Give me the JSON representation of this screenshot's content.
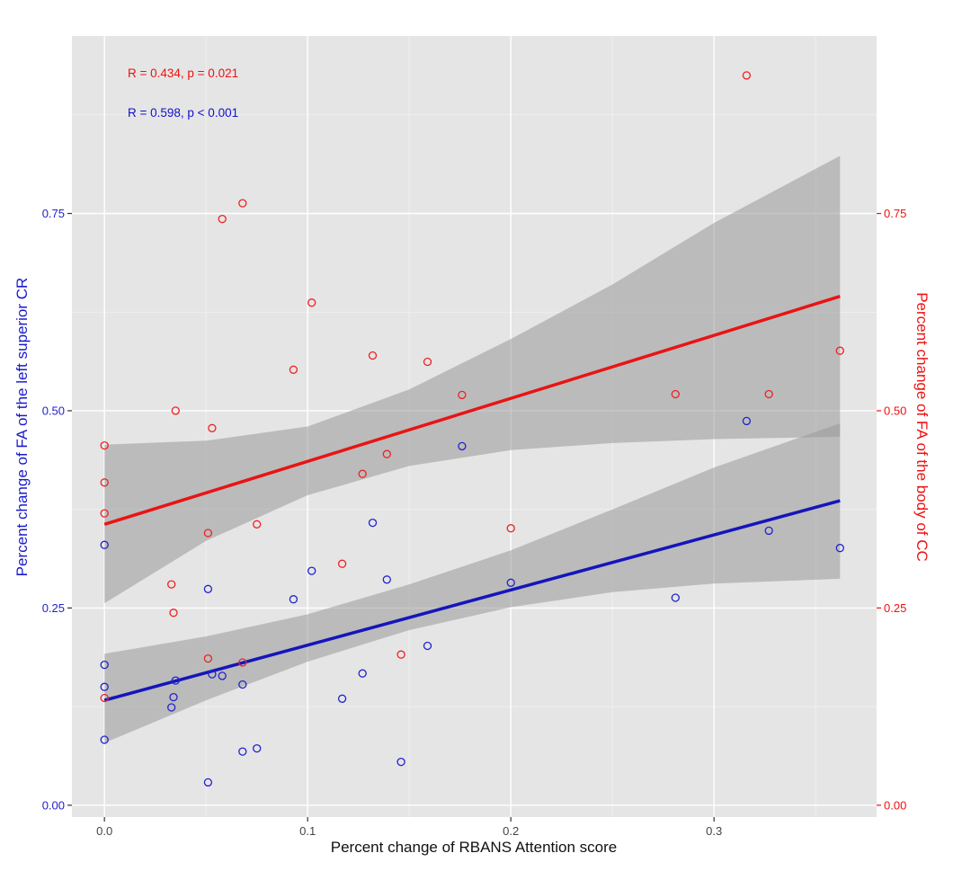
{
  "chart_data": {
    "type": "scatter",
    "xlabel": "Percent change of RBANS Attention score",
    "ylabel_left": "Percent change of FA of the left superior CR",
    "ylabel_right": "Percent change of FA of the body of CC",
    "xlim": [
      -0.016,
      0.38
    ],
    "ylim": [
      -0.015,
      0.975
    ],
    "x_ticks": [
      0.0,
      0.1,
      0.2,
      0.3
    ],
    "x_tick_labels": [
      "0.0",
      "0.1",
      "0.2",
      "0.3"
    ],
    "y_ticks": [
      0.0,
      0.25,
      0.5,
      0.75
    ],
    "y_tick_labels_left": [
      "0.00",
      "0.25",
      "0.50",
      "0.75"
    ],
    "y_tick_labels_right": [
      "0.00",
      "0.25",
      "0.50",
      "0.75"
    ],
    "grid": true,
    "annotations": [
      {
        "text": "R = 0.434, p = 0.021",
        "color": "#ee1111"
      },
      {
        "text": "R = 0.598, p < 0.001",
        "color": "#1111cc"
      }
    ],
    "series": [
      {
        "color": "#2222cc",
        "axis": "left",
        "points": [
          [
            0.0,
            0.33
          ],
          [
            0.0,
            0.178
          ],
          [
            0.0,
            0.15
          ],
          [
            0.0,
            0.083
          ],
          [
            0.033,
            0.124
          ],
          [
            0.034,
            0.137
          ],
          [
            0.035,
            0.158
          ],
          [
            0.051,
            0.274
          ],
          [
            0.051,
            0.029
          ],
          [
            0.053,
            0.166
          ],
          [
            0.058,
            0.164
          ],
          [
            0.068,
            0.153
          ],
          [
            0.068,
            0.068
          ],
          [
            0.075,
            0.072
          ],
          [
            0.093,
            0.261
          ],
          [
            0.102,
            0.297
          ],
          [
            0.117,
            0.135
          ],
          [
            0.127,
            0.167
          ],
          [
            0.132,
            0.358
          ],
          [
            0.139,
            0.286
          ],
          [
            0.146,
            0.055
          ],
          [
            0.159,
            0.202
          ],
          [
            0.176,
            0.455
          ],
          [
            0.2,
            0.282
          ],
          [
            0.281,
            0.263
          ],
          [
            0.316,
            0.487
          ],
          [
            0.327,
            0.348
          ],
          [
            0.362,
            0.326
          ]
        ],
        "fit": {
          "x": [
            0.0,
            0.362
          ],
          "y": [
            0.133,
            0.386
          ]
        },
        "ci": {
          "x": [
            0.0,
            0.05,
            0.1,
            0.15,
            0.2,
            0.25,
            0.3,
            0.362
          ],
          "lower": [
            0.079,
            0.133,
            0.182,
            0.222,
            0.251,
            0.27,
            0.281,
            0.287
          ],
          "upper": [
            0.192,
            0.214,
            0.242,
            0.28,
            0.323,
            0.375,
            0.428,
            0.484
          ]
        }
      },
      {
        "color": "#ee2222",
        "axis": "right",
        "points": [
          [
            0.0,
            0.456
          ],
          [
            0.0,
            0.409
          ],
          [
            0.0,
            0.37
          ],
          [
            0.0,
            0.136
          ],
          [
            0.033,
            0.28
          ],
          [
            0.034,
            0.244
          ],
          [
            0.035,
            0.5
          ],
          [
            0.051,
            0.345
          ],
          [
            0.051,
            0.186
          ],
          [
            0.053,
            0.478
          ],
          [
            0.058,
            0.743
          ],
          [
            0.068,
            0.763
          ],
          [
            0.068,
            0.181
          ],
          [
            0.075,
            0.356
          ],
          [
            0.093,
            0.552
          ],
          [
            0.102,
            0.637
          ],
          [
            0.117,
            0.306
          ],
          [
            0.127,
            0.42
          ],
          [
            0.132,
            0.57
          ],
          [
            0.139,
            0.445
          ],
          [
            0.146,
            0.191
          ],
          [
            0.159,
            0.562
          ],
          [
            0.176,
            0.52
          ],
          [
            0.2,
            0.351
          ],
          [
            0.281,
            0.521
          ],
          [
            0.316,
            0.925
          ],
          [
            0.327,
            0.521
          ],
          [
            0.362,
            0.576
          ]
        ],
        "fit": {
          "x": [
            0.0,
            0.362
          ],
          "y": [
            0.356,
            0.645
          ]
        },
        "ci": {
          "x": [
            0.0,
            0.05,
            0.1,
            0.15,
            0.2,
            0.25,
            0.3,
            0.362
          ],
          "lower": [
            0.256,
            0.335,
            0.393,
            0.43,
            0.45,
            0.459,
            0.464,
            0.467
          ],
          "upper": [
            0.457,
            0.462,
            0.48,
            0.527,
            0.591,
            0.66,
            0.738,
            0.823
          ]
        }
      }
    ]
  }
}
